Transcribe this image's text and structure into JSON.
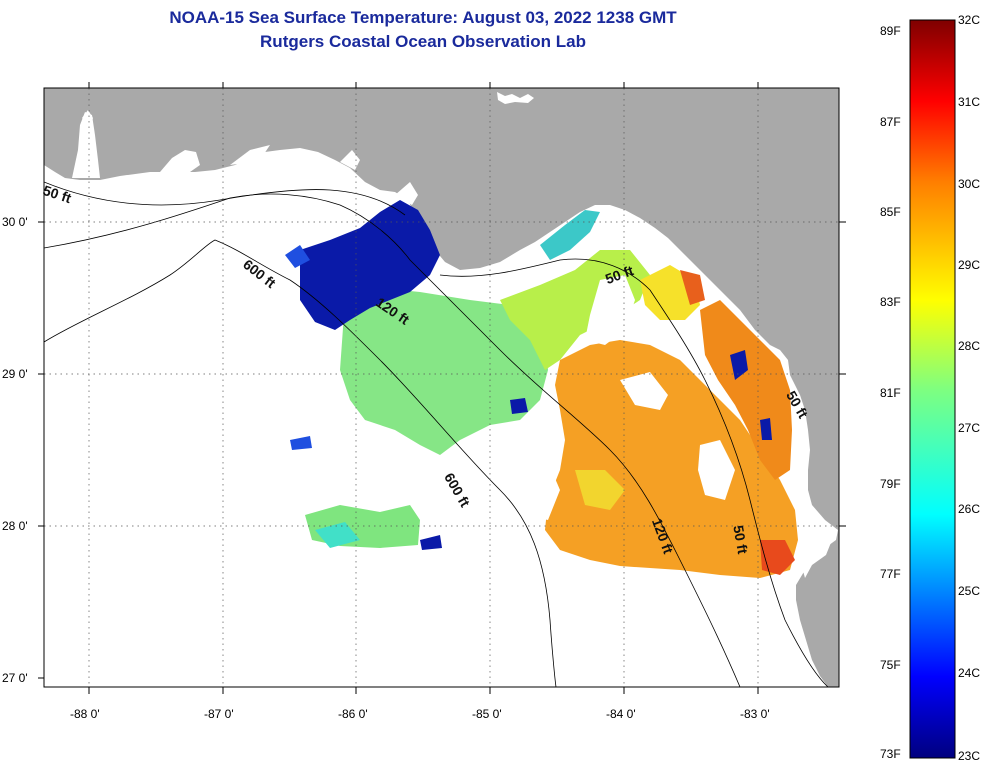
{
  "title": {
    "line1": "NOAA-15 Sea Surface Temperature:  August 03, 2022 1238 GMT",
    "line2": "Rutgers Coastal Ocean Observation Lab"
  },
  "colorbar": {
    "fahrenheit": [
      "89F",
      "87F",
      "85F",
      "83F",
      "81F",
      "79F",
      "77F",
      "75F",
      "73F"
    ],
    "celsius": [
      "32C",
      "31C",
      "30C",
      "29C",
      "28C",
      "27C",
      "26C",
      "25C",
      "24C",
      "23C"
    ],
    "range_c": [
      23,
      32
    ]
  },
  "axes": {
    "longitude_ticks": [
      "-88 0'",
      "-87 0'",
      "-86 0'",
      "-85 0'",
      "-84 0'",
      "-83 0'"
    ],
    "latitude_ticks": [
      "30 0'",
      "29 0'",
      "28 0'",
      "27 0'"
    ]
  },
  "depth_contours": {
    "labels": [
      "50 ft",
      "600 ft",
      "120 ft",
      "50 ft",
      "600 ft",
      "120 ft",
      "50 ft",
      "50 ft"
    ]
  },
  "colors": {
    "land": "#a9a9a9",
    "title": "#1a2a9c",
    "colormap": [
      "#00007f",
      "#0000ff",
      "#007fff",
      "#00ffff",
      "#7fff7f",
      "#ffff00",
      "#ff7f00",
      "#ff0000",
      "#7f0000"
    ]
  }
}
